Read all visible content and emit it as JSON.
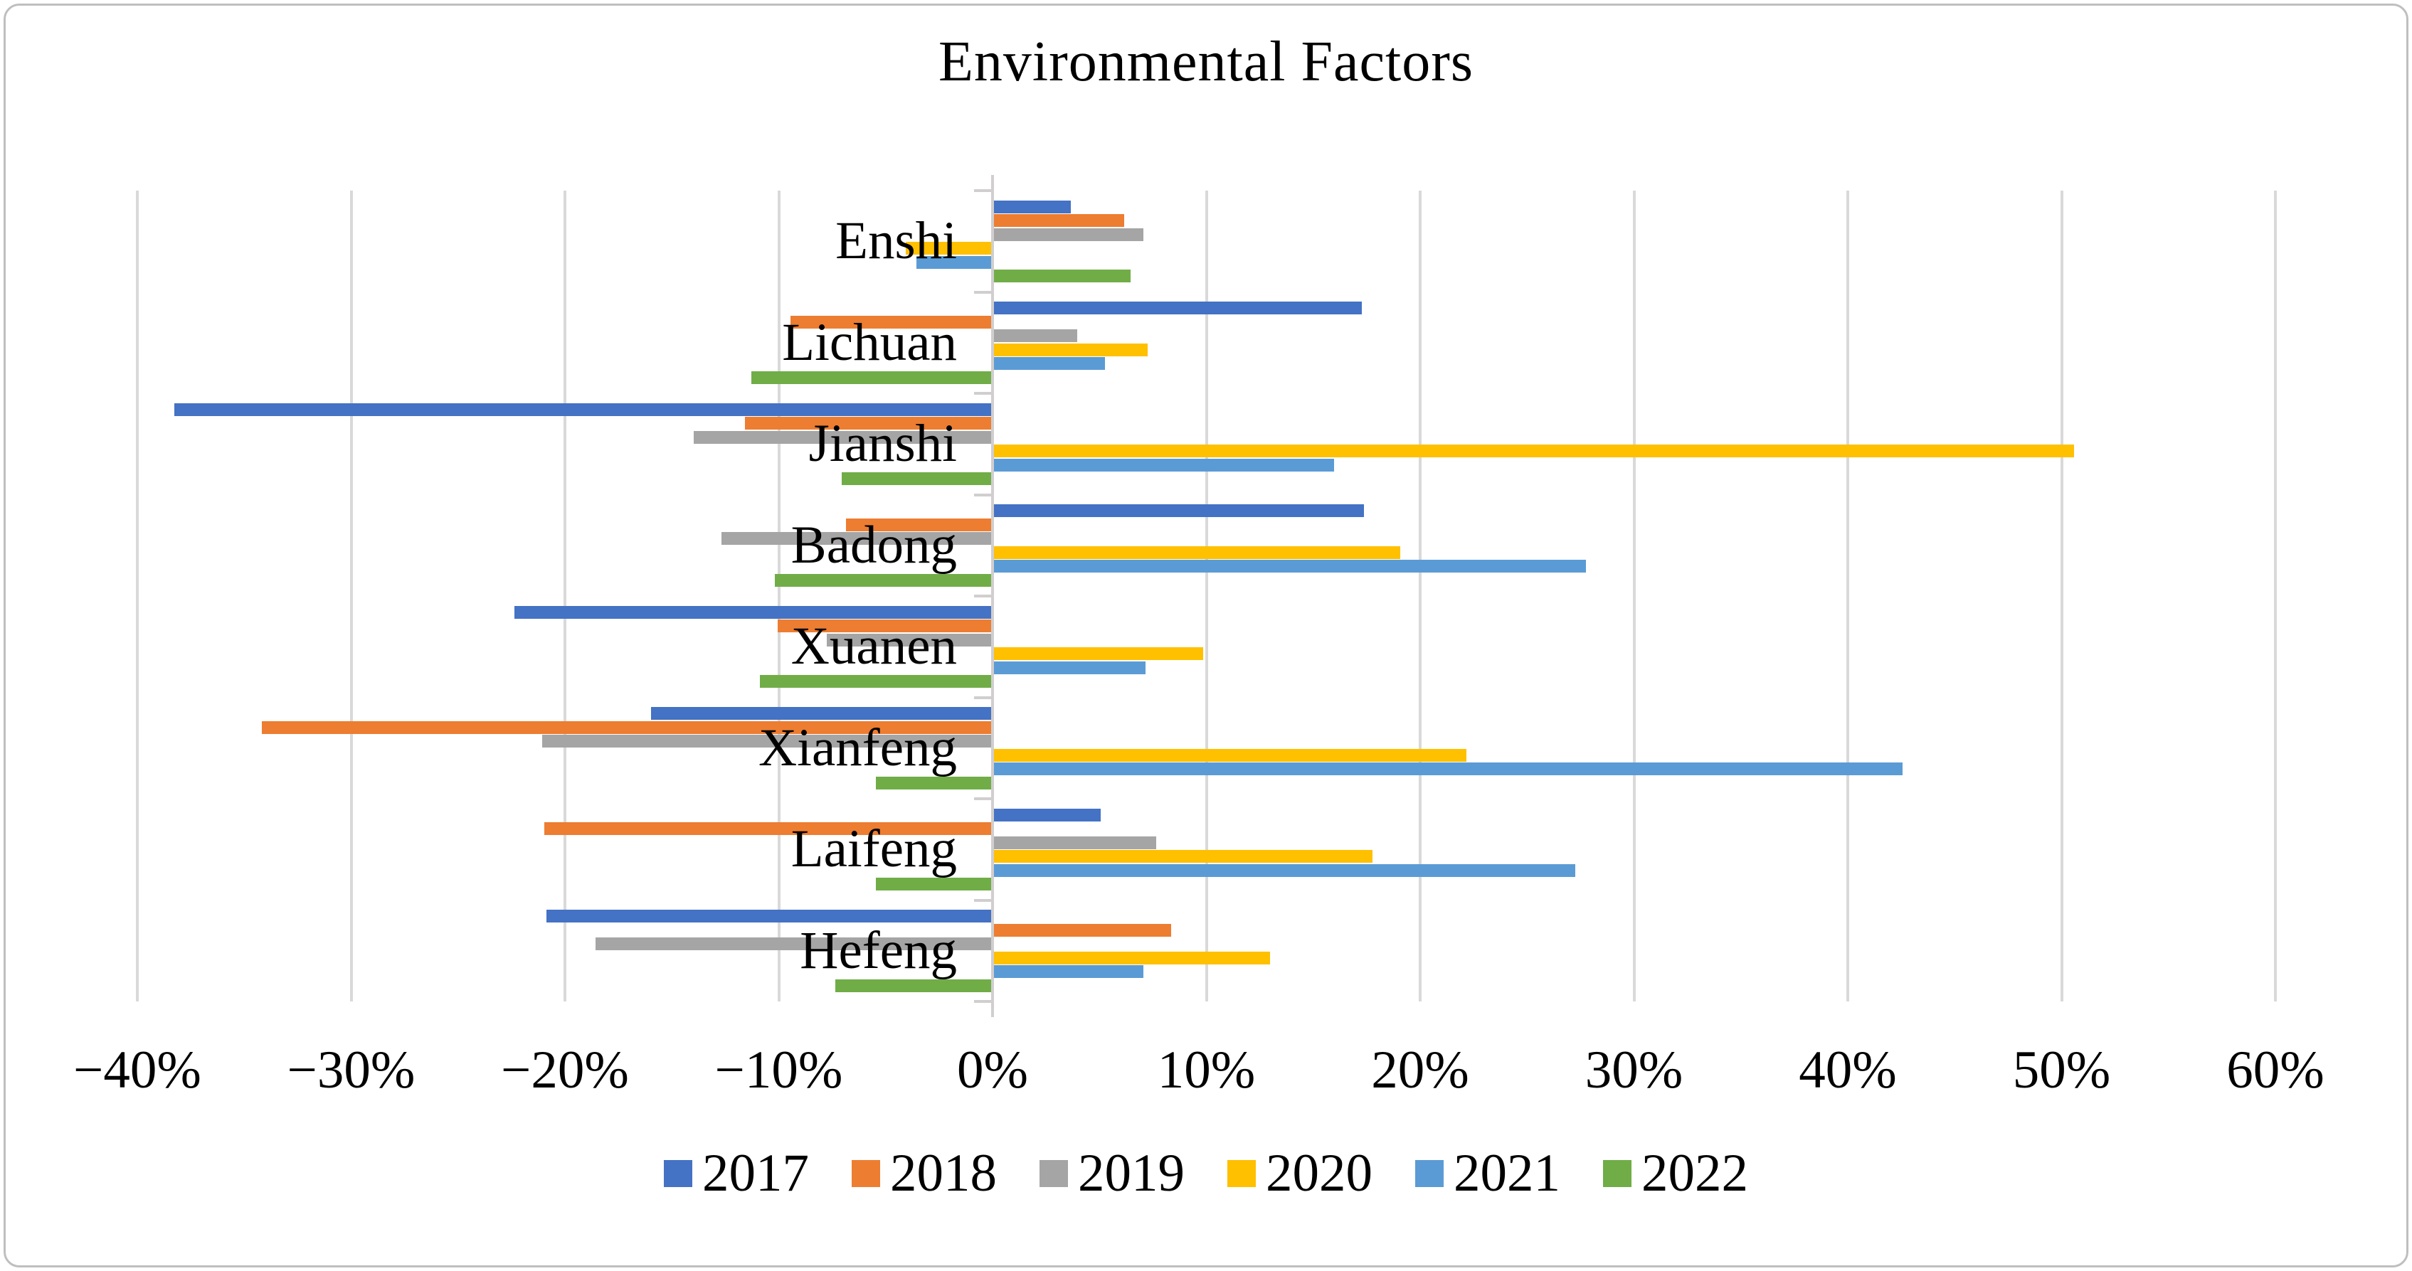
{
  "chart_data": {
    "type": "bar",
    "orientation": "horizontal",
    "title": "Environmental Factors",
    "categories": [
      "Enshi",
      "Lichuan",
      "Jianshi",
      "Badong",
      "Xuanen",
      "Xianfeng",
      "Laifeng",
      "Hefeng"
    ],
    "series": [
      {
        "name": "2017",
        "color": "#4472C4",
        "values": [
          3.6,
          17.2,
          -38.2,
          17.3,
          -22.3,
          -15.9,
          5.0,
          -20.8
        ]
      },
      {
        "name": "2018",
        "color": "#ED7D31",
        "values": [
          6.1,
          -9.4,
          -11.5,
          -6.8,
          -10.0,
          -34.1,
          -20.9,
          8.3
        ]
      },
      {
        "name": "2019",
        "color": "#A5A5A5",
        "values": [
          7.0,
          3.9,
          -13.9,
          -12.6,
          -7.7,
          -21.0,
          7.6,
          -18.5
        ]
      },
      {
        "name": "2020",
        "color": "#FFC000",
        "values": [
          -4.0,
          7.2,
          50.5,
          19.0,
          9.8,
          22.1,
          17.7,
          12.9
        ]
      },
      {
        "name": "2021",
        "color": "#5B9BD5",
        "values": [
          -3.5,
          5.2,
          15.9,
          27.7,
          7.1,
          42.5,
          27.2,
          7.0
        ]
      },
      {
        "name": "2022",
        "color": "#70AD47",
        "values": [
          6.4,
          -11.2,
          -7.0,
          -10.1,
          -10.8,
          -5.4,
          -5.4,
          -7.3
        ]
      }
    ],
    "x_axis": {
      "min": -40,
      "max": 60,
      "step": 10,
      "tick_labels": [
        "−40%",
        "−30%",
        "−20%",
        "−10%",
        "0%",
        "10%",
        "20%",
        "30%",
        "40%",
        "50%",
        "60%"
      ]
    },
    "grid": true,
    "legend_position": "bottom",
    "colors": {
      "gridline": "#D9D9D9",
      "axis": "#D0CECE",
      "text": "#000000",
      "border": "#BFBFBF",
      "background": "#FFFFFF"
    }
  }
}
